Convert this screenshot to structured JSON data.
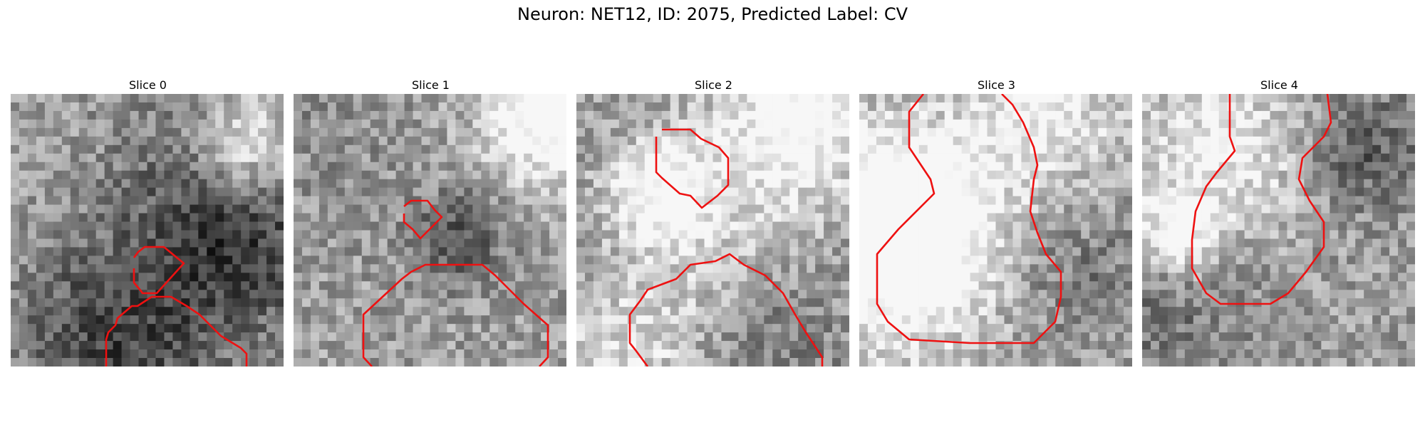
{
  "figure": {
    "title": "Neuron: NET12, ID: 2075, Predicted Label: CV",
    "contour_color": "#ee1111",
    "image_colormap": "grayscale",
    "panels": [
      {
        "title": "Slice 0",
        "blob_seed": 11
      },
      {
        "title": "Slice 1",
        "blob_seed": 23
      },
      {
        "title": "Slice 2",
        "blob_seed": 37
      },
      {
        "title": "Slice 3",
        "blob_seed": 51
      },
      {
        "title": "Slice 4",
        "blob_seed": 67
      }
    ]
  }
}
